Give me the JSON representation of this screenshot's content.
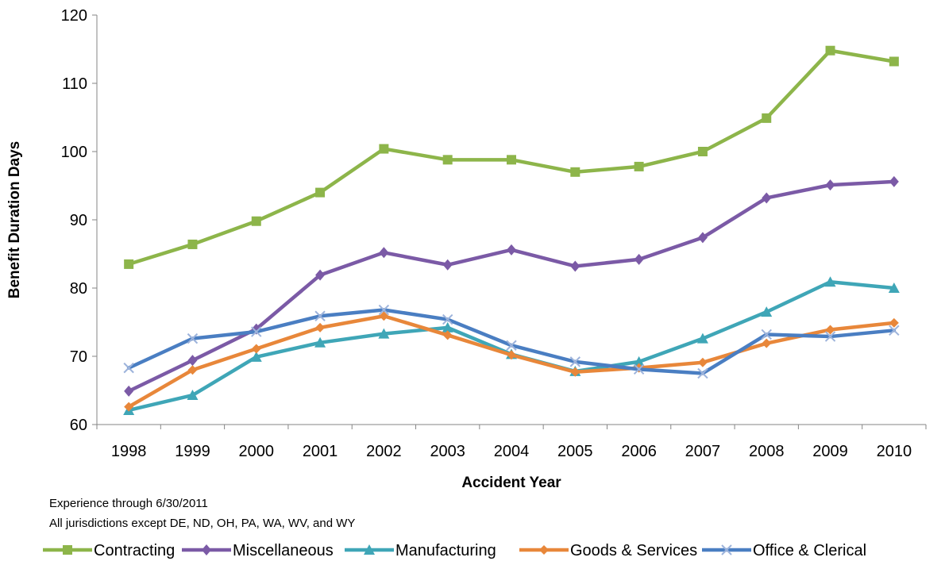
{
  "chart_data": {
    "type": "line",
    "xlabel": "Accident Year",
    "ylabel": "Benefit Duration Days",
    "ylim": [
      60,
      120
    ],
    "y_ticks": [
      60,
      70,
      80,
      90,
      100,
      110,
      120
    ],
    "grid": false,
    "legend_position": "bottom",
    "categories": [
      "1998",
      "1999",
      "2000",
      "2001",
      "2002",
      "2003",
      "2004",
      "2005",
      "2006",
      "2007",
      "2008",
      "2009",
      "2010"
    ],
    "notes": [
      "Experience through 6/30/2011",
      "All jurisdictions except DE, ND, OH, PA, WA, WV, and WY"
    ],
    "series": [
      {
        "name": "Contracting",
        "color": "#8DB54A",
        "marker": "square",
        "values": [
          83.5,
          86.4,
          89.8,
          94.0,
          100.4,
          98.8,
          98.8,
          97.0,
          97.8,
          100.0,
          104.9,
          114.8,
          113.2
        ]
      },
      {
        "name": "Miscellaneous",
        "color": "#7B5AA6",
        "marker": "diamond",
        "values": [
          64.9,
          69.4,
          74.0,
          81.9,
          85.2,
          83.4,
          85.6,
          83.2,
          84.2,
          87.4,
          93.2,
          95.1,
          95.6
        ]
      },
      {
        "name": "Manufacturing",
        "color": "#3FA6B7",
        "marker": "triangle",
        "values": [
          62.1,
          64.3,
          69.9,
          72.0,
          73.3,
          74.2,
          70.3,
          67.8,
          69.2,
          72.6,
          76.5,
          80.9,
          80.0
        ]
      },
      {
        "name": "Goods & Services",
        "color": "#E8873A",
        "marker": "circle-diamond",
        "values": [
          62.6,
          68.0,
          71.1,
          74.2,
          75.9,
          73.1,
          70.2,
          67.7,
          68.3,
          69.1,
          71.9,
          73.9,
          74.9
        ]
      },
      {
        "name": "Office & Clerical",
        "color": "#4A7EC2",
        "marker": "x",
        "values": [
          68.3,
          72.6,
          73.6,
          75.9,
          76.8,
          75.4,
          71.6,
          69.2,
          68.1,
          67.5,
          73.2,
          72.9,
          73.8
        ]
      }
    ]
  }
}
